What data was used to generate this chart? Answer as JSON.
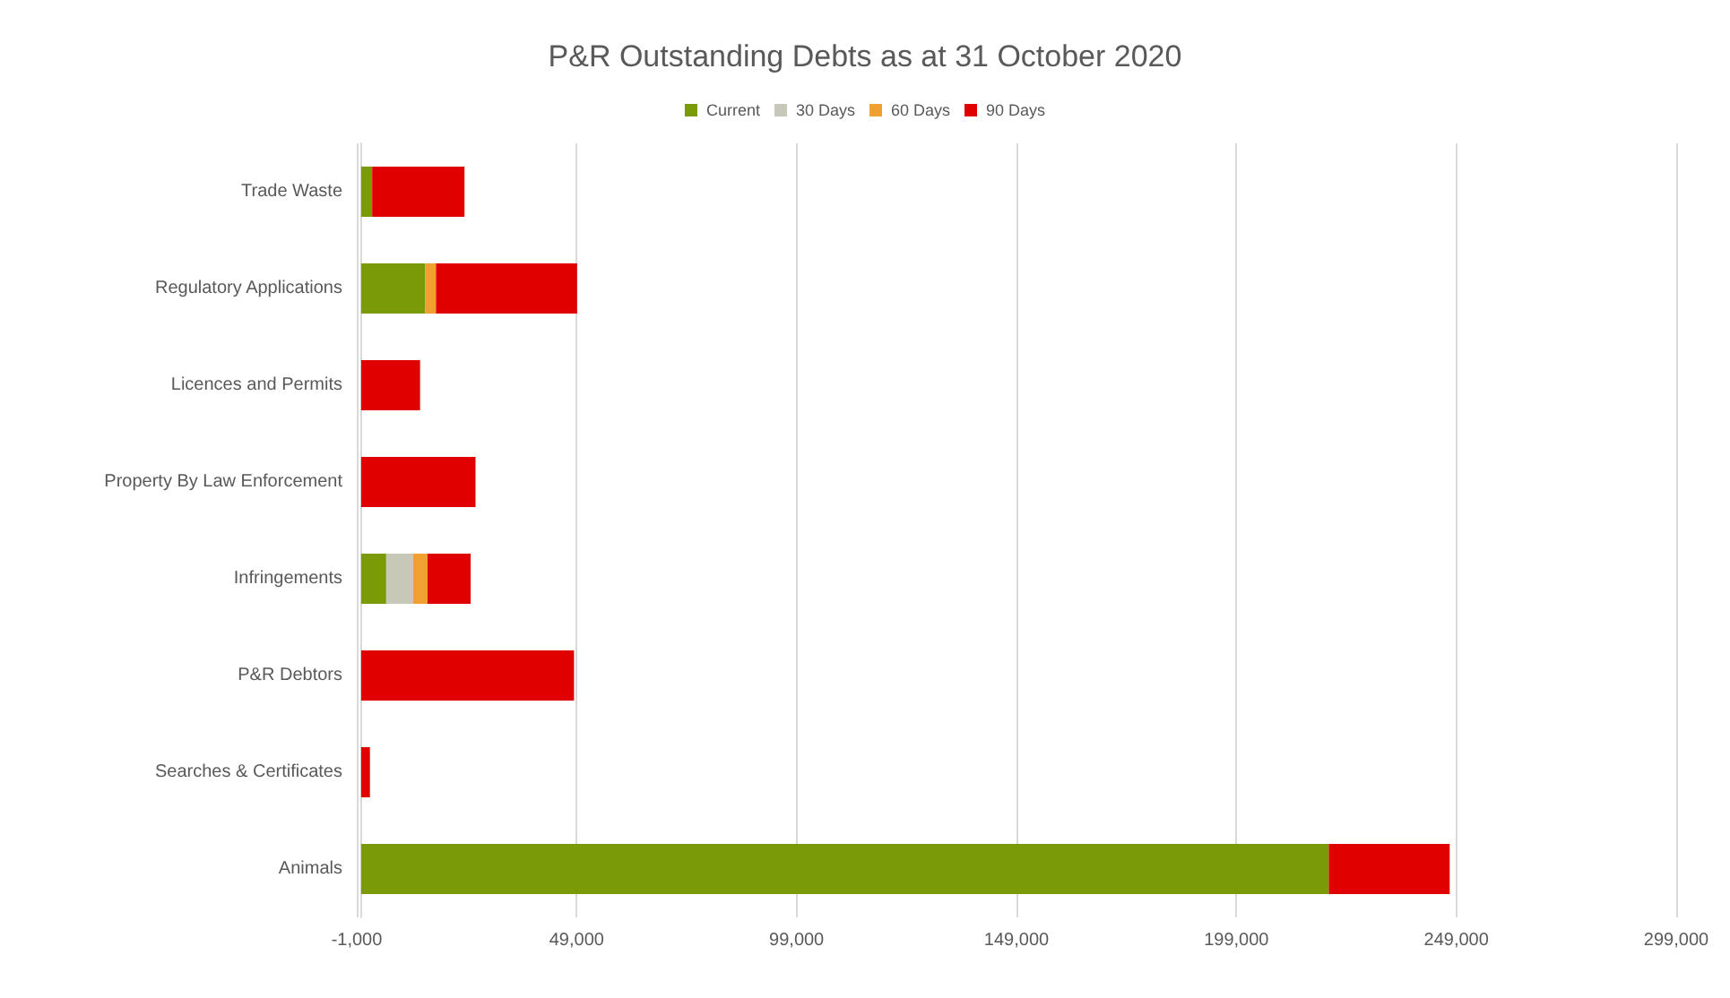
{
  "chart_data": {
    "type": "bar",
    "orientation": "horizontal",
    "stacked": true,
    "title": "P&R Outstanding Debts as at 31 October 2020",
    "categories": [
      "Trade Waste",
      "Regulatory Applications",
      "Licences and Permits",
      "Property By Law Enforcement",
      "Infringements",
      "P&R Debtors",
      "Searches & Certificates",
      "Animals"
    ],
    "series": [
      {
        "name": "Current",
        "color": "#7a9a08",
        "values": [
          2500,
          14600,
          null,
          null,
          5700,
          null,
          null,
          220000
        ]
      },
      {
        "name": "30 Days",
        "color": "#c8c8b8",
        "values": [
          null,
          null,
          null,
          null,
          6100,
          null,
          null,
          null
        ]
      },
      {
        "name": "60 Days",
        "color": "#f0a030",
        "values": [
          null,
          2400,
          null,
          null,
          3300,
          null,
          null,
          null
        ]
      },
      {
        "name": "90 Days",
        "color": "#e00000",
        "values": [
          21000,
          32100,
          13400,
          26000,
          9800,
          48400,
          2000,
          27500
        ]
      }
    ],
    "xlim": [
      -1000,
      299000
    ],
    "xticks": [
      {
        "value": -1000,
        "label": "-1,000"
      },
      {
        "value": 49000,
        "label": "49,000"
      },
      {
        "value": 99000,
        "label": "99,000"
      },
      {
        "value": 149000,
        "label": "149,000"
      },
      {
        "value": 199000,
        "label": "199,000"
      },
      {
        "value": 249000,
        "label": "249,000"
      },
      {
        "value": 299000,
        "label": "299,000"
      }
    ],
    "grid": "x",
    "legend": "top"
  }
}
